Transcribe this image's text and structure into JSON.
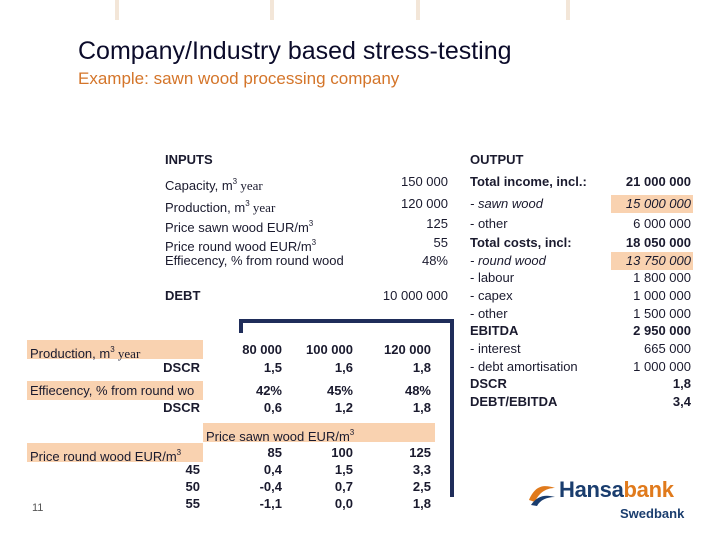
{
  "title": "Company/Industry based stress-testing",
  "subtitle": "Example: sawn wood processing company",
  "inputs": {
    "heading": "INPUTS",
    "capacity_label": "Capacity, m",
    "capacity_sup": "3",
    "capacity_unit": " year",
    "capacity_value": "150 000",
    "production_label": "Production, m",
    "production_sup": "3",
    "production_unit": " year",
    "production_value": "120 000",
    "price_sawn_label": "Price sawn wood EUR/m",
    "price_sawn_sup": "3",
    "price_sawn_value": "125",
    "price_round_label": "Price round wood EUR/m",
    "price_round_sup": "3",
    "price_round_value": "55",
    "efficiency_label": "Effiecency, % from round wood",
    "efficiency_value": "48%",
    "debt_label": "DEBT",
    "debt_value": "10 000 000"
  },
  "output": {
    "heading": "OUTPUT",
    "rows": [
      {
        "label": "Total income, incl.:",
        "value": "21 000 000"
      },
      {
        "label": " - sawn wood",
        "value": "15 000 000"
      },
      {
        "label": " - other",
        "value": "6 000 000"
      },
      {
        "label": "Total costs, incl:",
        "value": "18 050 000"
      },
      {
        "label": " - round wood",
        "value": "13 750 000"
      },
      {
        "label": " - labour",
        "value": "1 800 000"
      },
      {
        "label": " - capex",
        "value": "1 000 000"
      },
      {
        "label": " - other",
        "value": "1 500 000"
      },
      {
        "label": "EBITDA",
        "value": "2 950 000"
      },
      {
        "label": " - interest",
        "value": "665 000"
      },
      {
        "label": " - debt amortisation",
        "value": "1 000 000"
      },
      {
        "label": "DSCR",
        "value": "1,8"
      },
      {
        "label": "DEBT/EBITDA",
        "value": "3,4"
      }
    ]
  },
  "sensitivity": {
    "production": {
      "label": "Production, m",
      "sup": "3",
      "unit": " year",
      "values": [
        "80 000",
        "100 000",
        "120 000"
      ],
      "dscr_label": "DSCR",
      "dscr": [
        "1,5",
        "1,6",
        "1,8"
      ]
    },
    "efficiency": {
      "label": "Effiecency, % from round wo",
      "values": [
        "42%",
        "45%",
        "48%"
      ],
      "dscr_label": "DSCR",
      "dscr": [
        "0,6",
        "1,2",
        "1,8"
      ]
    },
    "price_sawn_header": "Price sawn wood  EUR/m",
    "price_sawn_sup": "3",
    "price_round_label": "Price round wood  EUR/m",
    "price_round_sup": "3",
    "price_sawn_values": [
      "85",
      "100",
      "125"
    ],
    "grid": [
      {
        "round": "45",
        "cells": [
          "0,4",
          "1,5",
          "3,3"
        ]
      },
      {
        "round": "50",
        "cells": [
          "-0,4",
          "0,7",
          "2,5"
        ]
      },
      {
        "round": "55",
        "cells": [
          "-1,1",
          "0,0",
          "1,8"
        ]
      }
    ]
  },
  "page_number": "11",
  "logo": {
    "main_a": "Hansa",
    "main_b": "bank",
    "sub": "Swedbank"
  },
  "colors": {
    "highlight": "#f9d2b0",
    "accent": "#d4752a",
    "frame": "#1f2d5a",
    "brand": "#1a3d6e"
  }
}
